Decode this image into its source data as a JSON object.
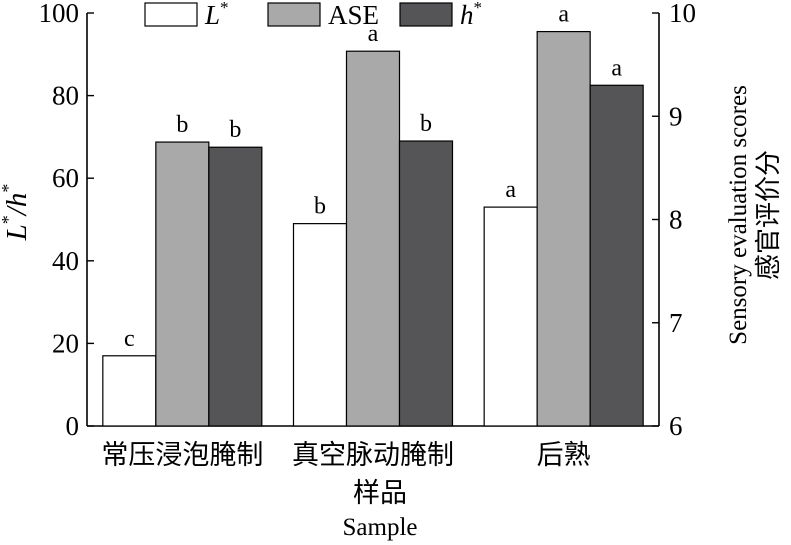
{
  "chart_data": {
    "type": "bar",
    "categories": [
      "常压浸泡腌制",
      "真空脉动腌制",
      "后熟"
    ],
    "xlabel_cn": "样品",
    "xlabel_en": "Sample",
    "ylabel_left": "L*/h*",
    "ylabel_right_en": "Sensory evaluation scores",
    "ylabel_right_cn": "感官评价分",
    "ylim_left": [
      0,
      100
    ],
    "ylim_right": [
      6,
      10
    ],
    "yticks_left": [
      "0",
      "20",
      "40",
      "60",
      "80",
      "100"
    ],
    "yticks_right": [
      "6",
      "7",
      "8",
      "9",
      "10"
    ],
    "legend_position": "top",
    "series": [
      {
        "name": "L*",
        "name_base": "L",
        "name_sup": "*",
        "axis": "left",
        "color": "#ffffff",
        "values": [
          17,
          49,
          53
        ],
        "labels": [
          "c",
          "b",
          "a"
        ]
      },
      {
        "name": "ASE",
        "name_base": "ASE",
        "name_sup": "",
        "axis": "right",
        "color": "#a9a9a9",
        "values": [
          8.75,
          9.63,
          9.82
        ],
        "labels": [
          "b",
          "a",
          "a"
        ]
      },
      {
        "name": "h*",
        "name_base": "h",
        "name_sup": "*",
        "axis": "left",
        "color": "#555557",
        "values": [
          67.5,
          69,
          82.5
        ],
        "labels": [
          "b",
          "b",
          "a"
        ]
      }
    ]
  }
}
